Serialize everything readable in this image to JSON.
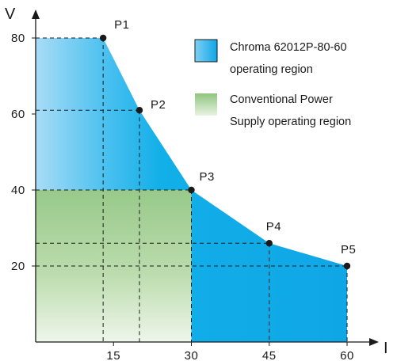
{
  "chart_data": {
    "type": "area",
    "xlabel": "I",
    "ylabel": "V",
    "x_ticks": [
      "15",
      "30",
      "45",
      "60"
    ],
    "y_ticks": [
      "20",
      "40",
      "60",
      "80"
    ],
    "xlim": [
      0,
      63
    ],
    "ylim": [
      0,
      88
    ],
    "points": [
      {
        "name": "P1",
        "x": 13,
        "y": 80
      },
      {
        "name": "P2",
        "x": 20,
        "y": 61
      },
      {
        "name": "P3",
        "x": 30,
        "y": 40
      },
      {
        "name": "P4",
        "x": 45,
        "y": 26
      },
      {
        "name": "P5",
        "x": 60,
        "y": 20
      }
    ],
    "regions": [
      {
        "name": "Chroma 62012P-80-60 operating region",
        "color": "#12afe8",
        "boundary": [
          [
            0,
            80
          ],
          [
            13,
            80
          ],
          [
            20,
            61
          ],
          [
            30,
            40
          ],
          [
            45,
            26
          ],
          [
            60,
            20
          ],
          [
            60,
            0
          ],
          [
            0,
            0
          ]
        ]
      },
      {
        "name": "Conventional Power Supply operating region",
        "color": "#9dcb8a",
        "boundary": [
          [
            0,
            40
          ],
          [
            30,
            40
          ],
          [
            30,
            0
          ],
          [
            0,
            0
          ]
        ]
      }
    ]
  },
  "legend": [
    {
      "line1": "Chroma 62012P-80-60",
      "line2": "operating region",
      "color": "#12afe8"
    },
    {
      "line1": "Conventional Power",
      "line2": "Supply operating region",
      "color": "#9dcb8a"
    }
  ]
}
